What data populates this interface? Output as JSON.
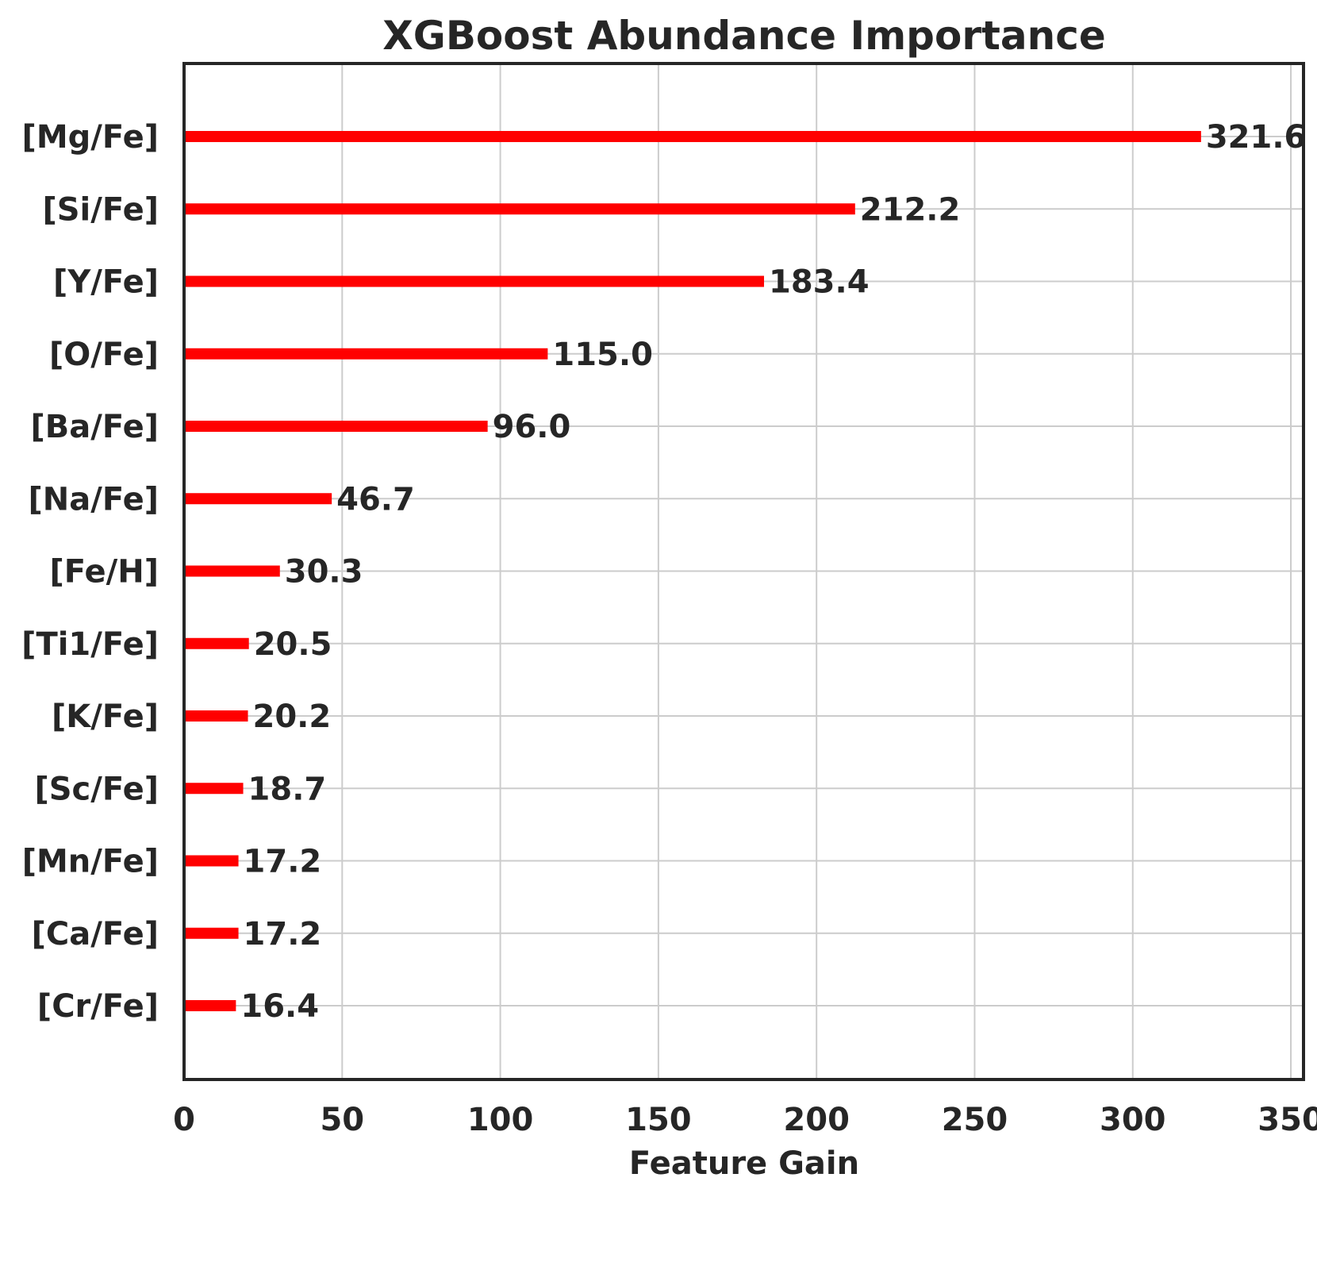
{
  "chart_data": {
    "type": "bar",
    "orientation": "horizontal",
    "title": "XGBoost Abundance Importance",
    "xlabel": "Feature Gain",
    "ylabel": "",
    "xlim": [
      0,
      354
    ],
    "xticks": [
      0,
      50,
      100,
      150,
      200,
      250,
      300,
      350
    ],
    "grid": true,
    "bar_color": "#ff0000",
    "categories": [
      "[Mg/Fe]",
      "[Si/Fe]",
      "[Y/Fe]",
      "[O/Fe]",
      "[Ba/Fe]",
      "[Na/Fe]",
      "[Fe/H]",
      "[Ti1/Fe]",
      "[K/Fe]",
      "[Sc/Fe]",
      "[Mn/Fe]",
      "[Ca/Fe]",
      "[Cr/Fe]"
    ],
    "values": [
      321.6,
      212.2,
      183.4,
      115.0,
      96.0,
      46.7,
      30.3,
      20.5,
      20.2,
      18.7,
      17.2,
      17.2,
      16.4
    ],
    "value_labels": [
      "321.6",
      "212.2",
      "183.4",
      "115.0",
      "96.0",
      "46.7",
      "30.3",
      "20.5",
      "20.2",
      "18.7",
      "17.2",
      "17.2",
      "16.4"
    ]
  }
}
